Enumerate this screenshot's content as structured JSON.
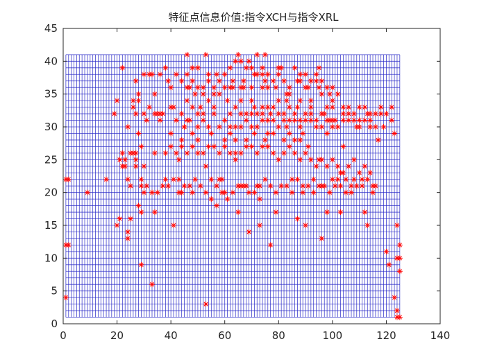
{
  "chart_data": {
    "type": "scatter",
    "title": "特征点信息价值:指令XCH与指令XRL",
    "xlabel": "",
    "ylabel": "",
    "xlim": [
      0,
      140
    ],
    "ylim": [
      0,
      45
    ],
    "xticks": [
      0,
      20,
      40,
      60,
      80,
      100,
      120,
      140
    ],
    "yticks": [
      0,
      5,
      10,
      15,
      20,
      25,
      30,
      35,
      40,
      45
    ],
    "grid": false,
    "legend": "none",
    "mesh": {
      "description_free": true,
      "x_range": [
        1,
        125
      ],
      "y_range": [
        1,
        41
      ],
      "x_step": 1,
      "y_step": 1,
      "color": "#2b2bc8"
    },
    "marker": "asterisk",
    "marker_color": "#ff0000",
    "points": [
      [
        1,
        22
      ],
      [
        2,
        22
      ],
      [
        1,
        12
      ],
      [
        2,
        12
      ],
      [
        1,
        4
      ],
      [
        9,
        20
      ],
      [
        16,
        22
      ],
      [
        19,
        32
      ],
      [
        20,
        34
      ],
      [
        20,
        15
      ],
      [
        21,
        16
      ],
      [
        22,
        39
      ],
      [
        22,
        24
      ],
      [
        23,
        24
      ],
      [
        24,
        22
      ],
      [
        25,
        21
      ],
      [
        24,
        14
      ],
      [
        24,
        13
      ],
      [
        25,
        16
      ],
      [
        26,
        26
      ],
      [
        27,
        26
      ],
      [
        27,
        24
      ],
      [
        27,
        37
      ],
      [
        26,
        34
      ],
      [
        27,
        32
      ],
      [
        28,
        29
      ],
      [
        28,
        18
      ],
      [
        29,
        17
      ],
      [
        29,
        9
      ],
      [
        29,
        21
      ],
      [
        30,
        20
      ],
      [
        30,
        24
      ],
      [
        29,
        27
      ],
      [
        31,
        31
      ],
      [
        32,
        38
      ],
      [
        33,
        38
      ],
      [
        33,
        6
      ],
      [
        34,
        17
      ],
      [
        34,
        26
      ],
      [
        35,
        32
      ],
      [
        36,
        32
      ],
      [
        37,
        32
      ],
      [
        38,
        22
      ],
      [
        39,
        37
      ],
      [
        40,
        33
      ],
      [
        40,
        29
      ],
      [
        41,
        33
      ],
      [
        41,
        15
      ],
      [
        42,
        31
      ],
      [
        43,
        25
      ],
      [
        43,
        20
      ],
      [
        44,
        20
      ],
      [
        45,
        30
      ],
      [
        46,
        41
      ],
      [
        46,
        38
      ],
      [
        47,
        36
      ],
      [
        47,
        31
      ],
      [
        48,
        29
      ],
      [
        48,
        20
      ],
      [
        49,
        35
      ],
      [
        50,
        32
      ],
      [
        50,
        28
      ],
      [
        51,
        33
      ],
      [
        52,
        36
      ],
      [
        52,
        31
      ],
      [
        53,
        24
      ],
      [
        53,
        41
      ],
      [
        53,
        3
      ],
      [
        54,
        37
      ],
      [
        55,
        29
      ],
      [
        55,
        22
      ],
      [
        56,
        33
      ],
      [
        57,
        21
      ],
      [
        57,
        38
      ],
      [
        58,
        22
      ],
      [
        59,
        22
      ],
      [
        60,
        20
      ],
      [
        61,
        34
      ],
      [
        62,
        36
      ],
      [
        63,
        36
      ],
      [
        64,
        33
      ],
      [
        64,
        25
      ],
      [
        65,
        41
      ],
      [
        65,
        17
      ],
      [
        66,
        21
      ],
      [
        66,
        34
      ],
      [
        67,
        36
      ],
      [
        68,
        21
      ],
      [
        68,
        31
      ],
      [
        69,
        14
      ],
      [
        69,
        40
      ],
      [
        70,
        36
      ],
      [
        71,
        33
      ],
      [
        71,
        29
      ],
      [
        72,
        21
      ],
      [
        72,
        41
      ],
      [
        73,
        15
      ],
      [
        73,
        19
      ],
      [
        74,
        38
      ],
      [
        74,
        33
      ],
      [
        75,
        41
      ],
      [
        75,
        28
      ],
      [
        76,
        36
      ],
      [
        77,
        32
      ],
      [
        77,
        12
      ],
      [
        78,
        29
      ],
      [
        79,
        17
      ],
      [
        80,
        39
      ],
      [
        81,
        39
      ],
      [
        82,
        32
      ],
      [
        83,
        34
      ],
      [
        83,
        30
      ],
      [
        84,
        31
      ],
      [
        85,
        22
      ],
      [
        86,
        28
      ],
      [
        87,
        33
      ],
      [
        87,
        16
      ],
      [
        88,
        38
      ],
      [
        88,
        31
      ],
      [
        89,
        29
      ],
      [
        89,
        20
      ],
      [
        90,
        15
      ],
      [
        90,
        38
      ],
      [
        91,
        27
      ],
      [
        92,
        33
      ],
      [
        93,
        22
      ],
      [
        94,
        37
      ],
      [
        95,
        39
      ],
      [
        95,
        25
      ],
      [
        96,
        21
      ],
      [
        96,
        13
      ],
      [
        97,
        32
      ],
      [
        98,
        29
      ],
      [
        98,
        17
      ],
      [
        99,
        31
      ],
      [
        100,
        22
      ],
      [
        100,
        33
      ],
      [
        101,
        31
      ],
      [
        102,
        22
      ],
      [
        103,
        17
      ],
      [
        103,
        23
      ],
      [
        104,
        27
      ],
      [
        105,
        20
      ],
      [
        106,
        31
      ],
      [
        107,
        21
      ],
      [
        108,
        22
      ],
      [
        109,
        30
      ],
      [
        110,
        31
      ],
      [
        111,
        22
      ],
      [
        112,
        17
      ],
      [
        113,
        15
      ],
      [
        113,
        32
      ],
      [
        114,
        30
      ],
      [
        115,
        21
      ],
      [
        116,
        21
      ],
      [
        117,
        28
      ],
      [
        118,
        32
      ],
      [
        119,
        30
      ],
      [
        120,
        11
      ],
      [
        121,
        9
      ],
      [
        122,
        33
      ],
      [
        123,
        29
      ],
      [
        123,
        4
      ],
      [
        124,
        2
      ],
      [
        124,
        1
      ],
      [
        124,
        15
      ],
      [
        124,
        10
      ],
      [
        125,
        10
      ],
      [
        125,
        12
      ],
      [
        125,
        8
      ],
      [
        125,
        1
      ],
      [
        58,
        35
      ],
      [
        60,
        31
      ],
      [
        62,
        29
      ],
      [
        64,
        28
      ],
      [
        66,
        30
      ],
      [
        68,
        32
      ],
      [
        70,
        34
      ],
      [
        72,
        30
      ],
      [
        74,
        31
      ],
      [
        76,
        29
      ],
      [
        78,
        33
      ],
      [
        80,
        30
      ],
      [
        82,
        28
      ],
      [
        84,
        35
      ],
      [
        86,
        32
      ],
      [
        88,
        30
      ],
      [
        90,
        32
      ],
      [
        92,
        31
      ],
      [
        94,
        30
      ],
      [
        96,
        32
      ],
      [
        98,
        33
      ],
      [
        100,
        31
      ],
      [
        102,
        30
      ],
      [
        104,
        31
      ],
      [
        106,
        33
      ],
      [
        108,
        31
      ],
      [
        110,
        30
      ],
      [
        112,
        31
      ],
      [
        114,
        32
      ],
      [
        116,
        30
      ],
      [
        44,
        32
      ],
      [
        46,
        31
      ],
      [
        48,
        33
      ],
      [
        50,
        30
      ],
      [
        52,
        32
      ],
      [
        54,
        30
      ],
      [
        56,
        32
      ],
      [
        60,
        36
      ],
      [
        62,
        32
      ],
      [
        66,
        36
      ],
      [
        70,
        32
      ],
      [
        74,
        36
      ],
      [
        78,
        31
      ],
      [
        82,
        31
      ],
      [
        86,
        31
      ],
      [
        90,
        31
      ],
      [
        94,
        31
      ],
      [
        98,
        31
      ],
      [
        58,
        30
      ],
      [
        62,
        30
      ],
      [
        66,
        32
      ],
      [
        70,
        30
      ],
      [
        74,
        32
      ],
      [
        76,
        31
      ],
      [
        80,
        32
      ],
      [
        84,
        29
      ],
      [
        88,
        28
      ],
      [
        92,
        32
      ],
      [
        96,
        30
      ],
      [
        100,
        30
      ],
      [
        104,
        32
      ],
      [
        60,
        28
      ],
      [
        64,
        30
      ],
      [
        68,
        28
      ],
      [
        72,
        32
      ],
      [
        76,
        33
      ],
      [
        80,
        34
      ],
      [
        84,
        33
      ],
      [
        88,
        34
      ],
      [
        92,
        34
      ],
      [
        96,
        35
      ],
      [
        100,
        34
      ],
      [
        63,
        37
      ],
      [
        67,
        37
      ],
      [
        71,
        38
      ],
      [
        75,
        37
      ],
      [
        79,
        36
      ],
      [
        83,
        35
      ],
      [
        87,
        37
      ],
      [
        91,
        36
      ],
      [
        95,
        36
      ],
      [
        99,
        35
      ],
      [
        56,
        36
      ],
      [
        54,
        38
      ],
      [
        50,
        39
      ],
      [
        48,
        37
      ],
      [
        46,
        34
      ],
      [
        45,
        30
      ],
      [
        44,
        28
      ],
      [
        42,
        26
      ],
      [
        40,
        27
      ],
      [
        38,
        26
      ],
      [
        36,
        31
      ],
      [
        34,
        32
      ],
      [
        32,
        33
      ],
      [
        30,
        32
      ],
      [
        28,
        34
      ],
      [
        26,
        33
      ],
      [
        24,
        30
      ],
      [
        22,
        26
      ],
      [
        21,
        25
      ],
      [
        23,
        25
      ],
      [
        25,
        26
      ],
      [
        27,
        25
      ],
      [
        29,
        22
      ],
      [
        31,
        21
      ],
      [
        33,
        20
      ],
      [
        35,
        20
      ],
      [
        37,
        21
      ],
      [
        39,
        21
      ],
      [
        41,
        22
      ],
      [
        43,
        22
      ],
      [
        45,
        21
      ],
      [
        47,
        21
      ],
      [
        49,
        22
      ],
      [
        51,
        21
      ],
      [
        53,
        20
      ],
      [
        55,
        19
      ],
      [
        57,
        18
      ],
      [
        59,
        20
      ],
      [
        61,
        19
      ],
      [
        63,
        20
      ],
      [
        65,
        21
      ],
      [
        67,
        21
      ],
      [
        69,
        20
      ],
      [
        71,
        20
      ],
      [
        73,
        21
      ],
      [
        75,
        22
      ],
      [
        77,
        21
      ],
      [
        79,
        20
      ],
      [
        81,
        21
      ],
      [
        83,
        21
      ],
      [
        85,
        20
      ],
      [
        87,
        22
      ],
      [
        89,
        21
      ],
      [
        91,
        21
      ],
      [
        93,
        20
      ],
      [
        95,
        21
      ],
      [
        97,
        21
      ],
      [
        99,
        20
      ],
      [
        101,
        21
      ],
      [
        103,
        21
      ],
      [
        105,
        22
      ],
      [
        107,
        20
      ],
      [
        109,
        21
      ],
      [
        111,
        21
      ],
      [
        113,
        22
      ],
      [
        115,
        20
      ],
      [
        28,
        35
      ],
      [
        30,
        38
      ],
      [
        34,
        35
      ],
      [
        36,
        38
      ],
      [
        38,
        39
      ],
      [
        40,
        36
      ],
      [
        42,
        38
      ],
      [
        44,
        37
      ],
      [
        46,
        36
      ],
      [
        48,
        39
      ],
      [
        50,
        36
      ],
      [
        52,
        35
      ],
      [
        54,
        34
      ],
      [
        56,
        35
      ],
      [
        58,
        37
      ],
      [
        60,
        38
      ],
      [
        62,
        39
      ],
      [
        64,
        40
      ],
      [
        66,
        40
      ],
      [
        68,
        39
      ],
      [
        70,
        39
      ],
      [
        72,
        38
      ],
      [
        74,
        39
      ],
      [
        76,
        38
      ],
      [
        78,
        37
      ],
      [
        80,
        38
      ],
      [
        82,
        37
      ],
      [
        84,
        36
      ],
      [
        86,
        39
      ],
      [
        88,
        37
      ],
      [
        90,
        36
      ],
      [
        92,
        37
      ],
      [
        94,
        38
      ],
      [
        96,
        37
      ],
      [
        98,
        36
      ],
      [
        100,
        36
      ],
      [
        102,
        35
      ],
      [
        104,
        33
      ],
      [
        106,
        32
      ],
      [
        108,
        32
      ],
      [
        110,
        33
      ],
      [
        112,
        33
      ],
      [
        114,
        31
      ],
      [
        116,
        32
      ],
      [
        118,
        33
      ],
      [
        120,
        32
      ],
      [
        122,
        31
      ],
      [
        66,
        26
      ],
      [
        68,
        27
      ],
      [
        70,
        27
      ],
      [
        72,
        26
      ],
      [
        74,
        27
      ],
      [
        76,
        27
      ],
      [
        78,
        26
      ],
      [
        80,
        25
      ],
      [
        82,
        26
      ],
      [
        84,
        27
      ],
      [
        86,
        26
      ],
      [
        88,
        25
      ],
      [
        90,
        26
      ],
      [
        92,
        25
      ],
      [
        94,
        24
      ],
      [
        96,
        25
      ],
      [
        98,
        24
      ],
      [
        100,
        25
      ],
      [
        102,
        24
      ],
      [
        104,
        23
      ],
      [
        106,
        24
      ],
      [
        108,
        25
      ],
      [
        110,
        23
      ],
      [
        112,
        24
      ],
      [
        114,
        23
      ],
      [
        44,
        27
      ],
      [
        46,
        26
      ],
      [
        48,
        27
      ],
      [
        50,
        26
      ],
      [
        52,
        26
      ],
      [
        54,
        27
      ],
      [
        56,
        27
      ],
      [
        58,
        26
      ],
      [
        60,
        27
      ],
      [
        62,
        26
      ],
      [
        64,
        26
      ]
    ]
  }
}
